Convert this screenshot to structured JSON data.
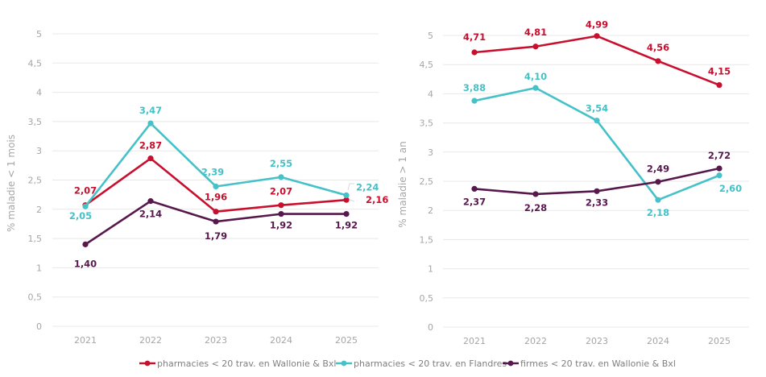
{
  "colors": {
    "red": "#c8102e",
    "teal": "#45c1c8",
    "purple": "#57194d",
    "tick": "#a6a6a6",
    "grid": "#e8e8e8"
  },
  "chart_data": [
    {
      "type": "line",
      "title": "",
      "xlabel": "",
      "ylabel": "% maladie < 1 mois",
      "categories": [
        "2021",
        "2022",
        "2023",
        "2024",
        "2025"
      ],
      "ylim": [
        0,
        5
      ],
      "yticks": [
        "0",
        "0,5",
        "1",
        "1,5",
        "2",
        "2,5",
        "3",
        "3,5",
        "4",
        "4,5",
        "5"
      ],
      "grid": true,
      "series": [
        {
          "name": "pharmacies < 20 trav. en Wallonie & Bxl",
          "color_key": "red",
          "values": [
            2.07,
            2.87,
            1.96,
            2.07,
            2.16
          ],
          "labels": [
            "2,07",
            "2,87",
            "1,96",
            "2,07",
            "2,16"
          ]
        },
        {
          "name": "pharmacies < 20 trav. en Flandres",
          "color_key": "teal",
          "values": [
            2.05,
            3.47,
            2.39,
            2.55,
            2.24
          ],
          "labels": [
            "2,05",
            "3,47",
            "2,39",
            "2,55",
            "2,24"
          ]
        },
        {
          "name": "firmes < 20 trav. en Wallonie & Bxl",
          "color_key": "purple",
          "values": [
            1.4,
            2.14,
            1.79,
            1.92,
            1.92
          ],
          "labels": [
            "1,40",
            "2,14",
            "1,79",
            "1,92",
            "1,92"
          ]
        }
      ]
    },
    {
      "type": "line",
      "title": "",
      "xlabel": "",
      "ylabel": "% maladie > 1 an",
      "categories": [
        "2021",
        "2022",
        "2023",
        "2024",
        "2025"
      ],
      "ylim": [
        0,
        5
      ],
      "yticks": [
        "0",
        "0,5",
        "1",
        "1,5",
        "2",
        "2,5",
        "3",
        "3,5",
        "4",
        "4,5",
        "5"
      ],
      "grid": true,
      "series": [
        {
          "name": "pharmacies < 20 trav. en Wallonie & Bxl",
          "color_key": "red",
          "values": [
            4.71,
            4.81,
            4.99,
            4.56,
            4.15
          ],
          "labels": [
            "4,71",
            "4,81",
            "4,99",
            "4,56",
            "4,15"
          ]
        },
        {
          "name": "pharmacies < 20 trav. en Flandres",
          "color_key": "teal",
          "values": [
            3.88,
            4.1,
            3.54,
            2.18,
            2.6
          ],
          "labels": [
            "3,88",
            "4,10",
            "3,54",
            "2,18",
            "2,60"
          ]
        },
        {
          "name": "firmes < 20 trav. en Wallonie & Bxl",
          "color_key": "purple",
          "values": [
            2.37,
            2.28,
            2.33,
            2.49,
            2.72
          ],
          "labels": [
            "2,37",
            "2,28",
            "2,33",
            "2,49",
            "2,72"
          ]
        }
      ]
    }
  ],
  "legend": {
    "placement": "bottom-center",
    "items": [
      {
        "label": "pharmacies < 20 trav. en Wallonie & Bxl",
        "color_key": "red"
      },
      {
        "label": "pharmacies < 20 trav. en Flandres",
        "color_key": "teal"
      },
      {
        "label": "firmes < 20 trav. en Wallonie & Bxl",
        "color_key": "purple"
      }
    ]
  }
}
